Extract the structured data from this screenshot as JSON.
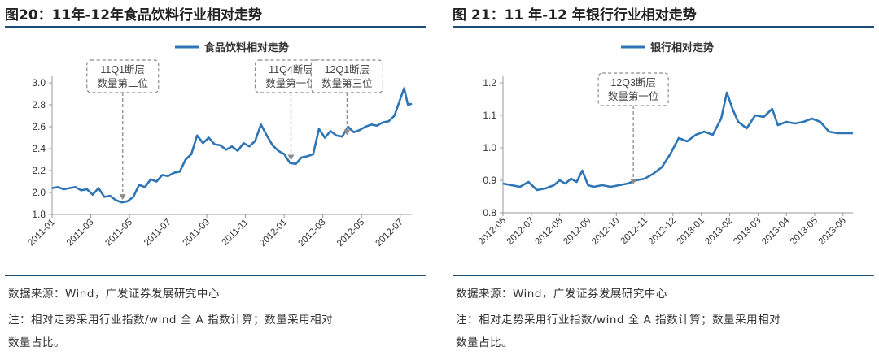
{
  "charts": [
    {
      "figure_title": "图20：11年-12年食品饮料行业相对走势",
      "source": "数据来源：Wind，广发证券发展研究中心",
      "note_line1": "注：相对走势采用行业指数/wind 全 A 指数计算；数量采用相对",
      "note_line2": "数量占比。",
      "line_color": "#2e75b6",
      "annotations": [
        {
          "line1": "11Q1断层",
          "line2": "数量第二位",
          "x": 3.65,
          "y": 1.91
        },
        {
          "line1": "11Q4断层",
          "line2": "数量第一位",
          "x": 12.35,
          "y": 2.27
        },
        {
          "line1": "12Q1断层",
          "line2": "数量第三位",
          "x": 15.25,
          "y": 2.5
        }
      ]
    },
    {
      "figure_title": "图 21：11 年-12 年银行行业相对走势",
      "source": "数据来源：Wind，广发证券发展研究中心",
      "note_line1": "注：相对走势采用行业指数/wind 全 A 指数计算；数量采用相对",
      "note_line2": "数量占比。",
      "line_color": "#2e75b6",
      "annotations": [
        {
          "line1": "12Q3断层",
          "line2": "数量第一位",
          "x": 4.6,
          "y": 0.88
        }
      ]
    }
  ],
  "chart_data": [
    {
      "type": "line",
      "title": "",
      "xlabel": "",
      "ylabel": "",
      "ylim": [
        1.8,
        3.0
      ],
      "yticks": [
        "1.8",
        "2.0",
        "2.2",
        "2.4",
        "2.6",
        "2.8",
        "3.0"
      ],
      "categories": [
        "2011-01",
        "2011-03",
        "2011-05",
        "2011-07",
        "2011-09",
        "2011-11",
        "2012-01",
        "2012-03",
        "2012-05",
        "2012-07"
      ],
      "category_x": [
        0,
        2,
        4,
        6,
        8,
        10,
        12,
        14,
        16,
        18
      ],
      "xlim": [
        0,
        18.6
      ],
      "grid": false,
      "legend_position": "top-center",
      "series": [
        {
          "name": "食品饮料相对走势",
          "x": [
            0,
            0.3,
            0.6,
            0.9,
            1.2,
            1.5,
            1.8,
            2.1,
            2.4,
            2.7,
            3.0,
            3.3,
            3.6,
            3.9,
            4.2,
            4.5,
            4.8,
            5.1,
            5.4,
            5.7,
            6.0,
            6.3,
            6.6,
            6.9,
            7.2,
            7.5,
            7.8,
            8.1,
            8.4,
            8.7,
            9.0,
            9.3,
            9.6,
            9.9,
            10.2,
            10.5,
            10.8,
            11.1,
            11.4,
            11.7,
            12.0,
            12.3,
            12.6,
            12.9,
            13.2,
            13.5,
            13.8,
            14.1,
            14.4,
            14.7,
            15.0,
            15.3,
            15.6,
            15.9,
            16.2,
            16.5,
            16.8,
            17.1,
            17.4,
            17.7,
            18.0,
            18.2,
            18.4,
            18.6
          ],
          "y": [
            2.04,
            2.05,
            2.03,
            2.04,
            2.05,
            2.02,
            2.03,
            1.98,
            2.04,
            1.96,
            1.97,
            1.93,
            1.91,
            1.92,
            1.96,
            2.07,
            2.05,
            2.12,
            2.1,
            2.16,
            2.15,
            2.18,
            2.19,
            2.3,
            2.35,
            2.52,
            2.45,
            2.5,
            2.44,
            2.43,
            2.39,
            2.42,
            2.38,
            2.45,
            2.42,
            2.47,
            2.62,
            2.52,
            2.43,
            2.38,
            2.35,
            2.27,
            2.26,
            2.32,
            2.33,
            2.35,
            2.58,
            2.5,
            2.56,
            2.52,
            2.51,
            2.6,
            2.55,
            2.57,
            2.6,
            2.62,
            2.61,
            2.64,
            2.65,
            2.7,
            2.85,
            2.95,
            2.8,
            2.81
          ]
        }
      ]
    },
    {
      "type": "line",
      "title": "",
      "xlabel": "",
      "ylabel": "",
      "ylim": [
        0.8,
        1.2
      ],
      "yticks": [
        "0.8",
        "0.9",
        "1.0",
        "1.1",
        "1.2"
      ],
      "categories": [
        "2012-06",
        "2012-07",
        "2012-08",
        "2012-09",
        "2012-10",
        "2012-11",
        "2012-12",
        "2013-01",
        "2013-02",
        "2013-03",
        "2013-04",
        "2013-05",
        "2013-06"
      ],
      "category_x": [
        0,
        1,
        2,
        3,
        4,
        5,
        6,
        7,
        8,
        9,
        10,
        11,
        12
      ],
      "xlim": [
        0,
        12.35
      ],
      "grid": false,
      "legend_position": "top-center",
      "series": [
        {
          "name": "银行相对走势",
          "x": [
            0,
            0.3,
            0.6,
            0.9,
            1.2,
            1.5,
            1.8,
            2.0,
            2.2,
            2.4,
            2.6,
            2.8,
            3.0,
            3.2,
            3.5,
            3.8,
            4.1,
            4.4,
            4.7,
            5.0,
            5.3,
            5.6,
            5.9,
            6.2,
            6.5,
            6.8,
            7.1,
            7.4,
            7.7,
            7.9,
            8.1,
            8.3,
            8.6,
            8.9,
            9.2,
            9.5,
            9.7,
            10.0,
            10.3,
            10.6,
            10.9,
            11.2,
            11.5,
            11.8,
            12.1,
            12.35
          ],
          "y": [
            0.89,
            0.885,
            0.88,
            0.895,
            0.87,
            0.875,
            0.885,
            0.9,
            0.89,
            0.905,
            0.895,
            0.93,
            0.885,
            0.88,
            0.885,
            0.88,
            0.885,
            0.89,
            0.9,
            0.905,
            0.92,
            0.94,
            0.98,
            1.03,
            1.02,
            1.04,
            1.05,
            1.04,
            1.09,
            1.17,
            1.12,
            1.08,
            1.06,
            1.1,
            1.095,
            1.12,
            1.07,
            1.08,
            1.075,
            1.08,
            1.09,
            1.08,
            1.05,
            1.045,
            1.045,
            1.045
          ]
        }
      ]
    }
  ]
}
